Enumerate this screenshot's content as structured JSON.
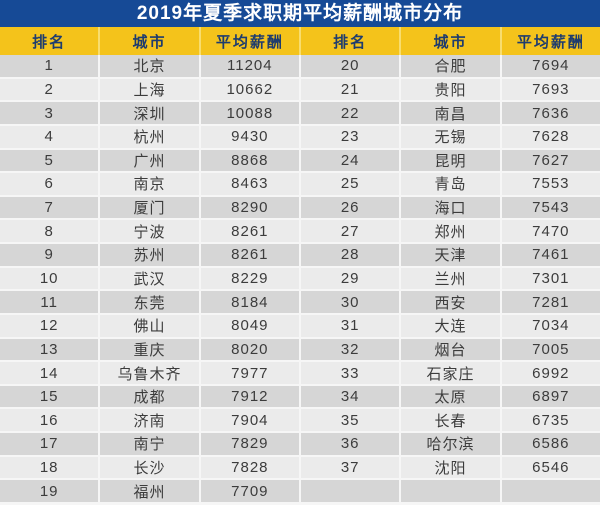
{
  "chart_data": {
    "type": "table",
    "title": "2019年夏季求职期平均薪酬城市分布",
    "columns": [
      "排名",
      "城市",
      "平均薪酬"
    ],
    "rows": [
      [
        1,
        "北京",
        11204
      ],
      [
        2,
        "上海",
        10662
      ],
      [
        3,
        "深圳",
        10088
      ],
      [
        4,
        "杭州",
        9430
      ],
      [
        5,
        "广州",
        8868
      ],
      [
        6,
        "南京",
        8463
      ],
      [
        7,
        "厦门",
        8290
      ],
      [
        8,
        "宁波",
        8261
      ],
      [
        9,
        "苏州",
        8261
      ],
      [
        10,
        "武汉",
        8229
      ],
      [
        11,
        "东莞",
        8184
      ],
      [
        12,
        "佛山",
        8049
      ],
      [
        13,
        "重庆",
        8020
      ],
      [
        14,
        "乌鲁木齐",
        7977
      ],
      [
        15,
        "成都",
        7912
      ],
      [
        16,
        "济南",
        7904
      ],
      [
        17,
        "南宁",
        7829
      ],
      [
        18,
        "长沙",
        7828
      ],
      [
        19,
        "福州",
        7709
      ],
      [
        20,
        "合肥",
        7694
      ],
      [
        21,
        "贵阳",
        7693
      ],
      [
        22,
        "南昌",
        7636
      ],
      [
        23,
        "无锡",
        7628
      ],
      [
        24,
        "昆明",
        7627
      ],
      [
        25,
        "青岛",
        7553
      ],
      [
        26,
        "海口",
        7543
      ],
      [
        27,
        "郑州",
        7470
      ],
      [
        28,
        "天津",
        7461
      ],
      [
        29,
        "兰州",
        7301
      ],
      [
        30,
        "西安",
        7281
      ],
      [
        31,
        "大连",
        7034
      ],
      [
        32,
        "烟台",
        7005
      ],
      [
        33,
        "石家庄",
        6992
      ],
      [
        34,
        "太原",
        6897
      ],
      [
        35,
        "长春",
        6735
      ],
      [
        36,
        "哈尔滨",
        6586
      ],
      [
        37,
        "沈阳",
        6546
      ]
    ],
    "layout": {
      "split": "two-column",
      "left_rows": 19,
      "right_rows": 18,
      "grid": "off",
      "legend": "none"
    }
  },
  "colors": {
    "title_bg": "#164a96",
    "title_text": "#ffffff",
    "header_bg": "#f4c31b",
    "header_text": "#1e3c6e",
    "row_dark": "#d6d6d6",
    "row_light": "#ebebeb",
    "cell_text": "#3c3c3c",
    "separator": "#f6f6f6"
  }
}
